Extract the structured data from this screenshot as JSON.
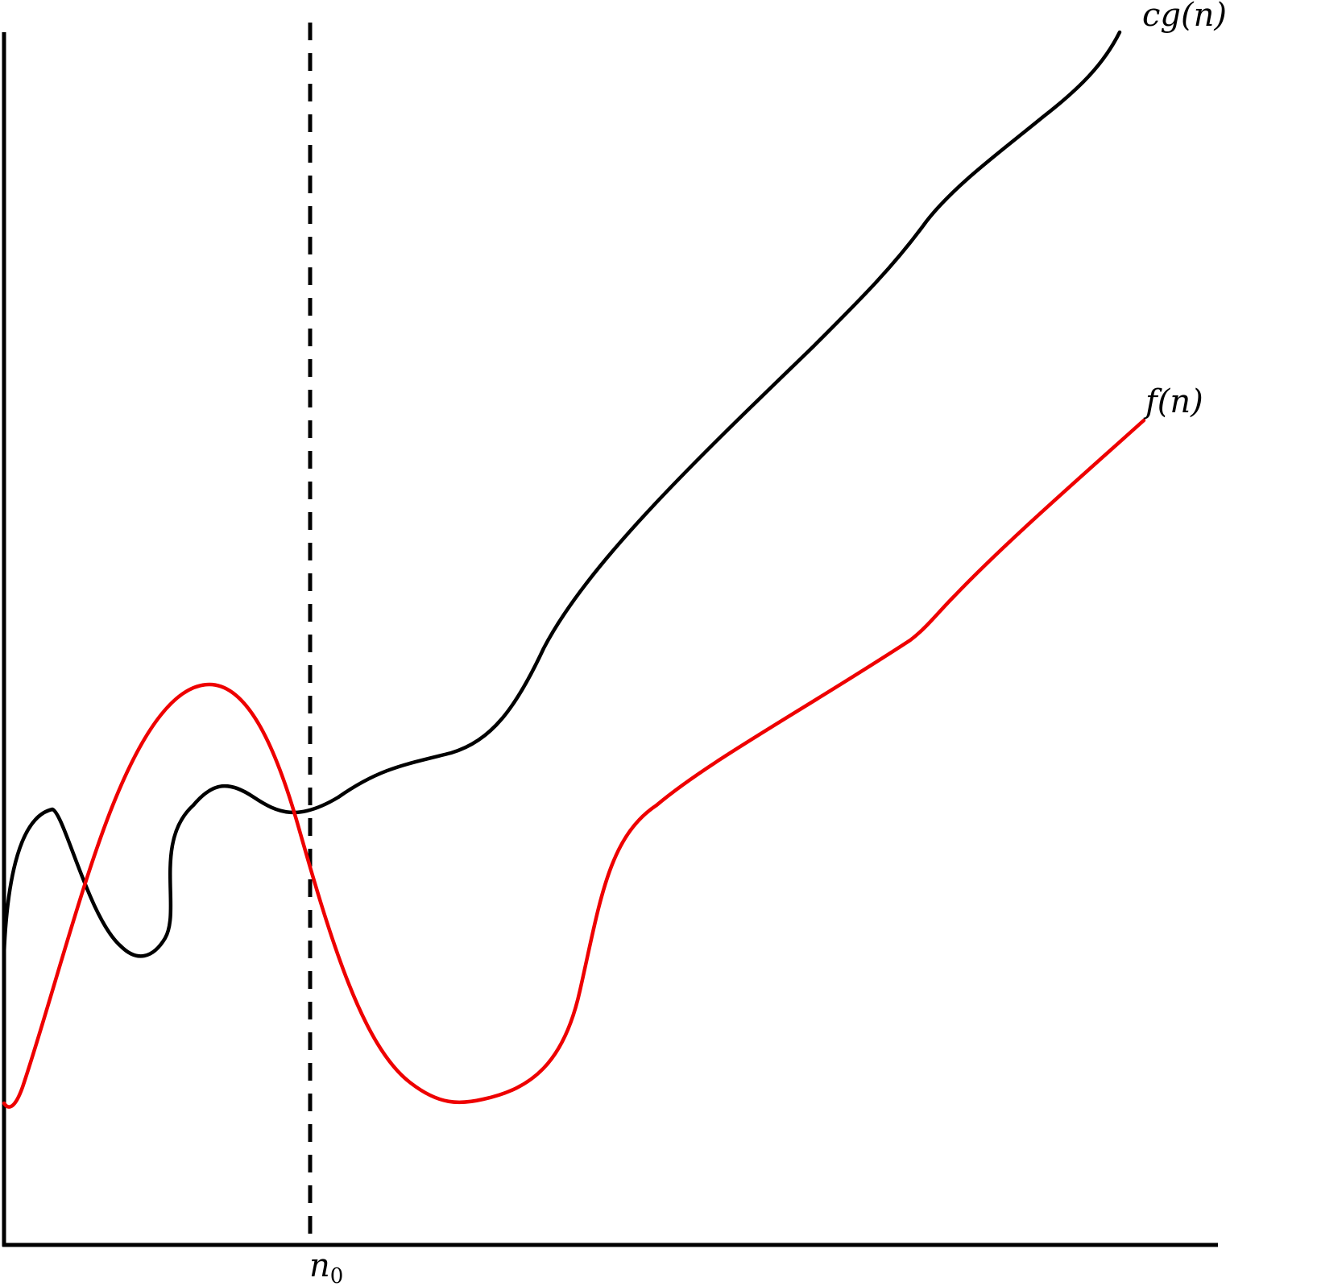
{
  "labels": {
    "upper_curve": "cg(n)",
    "lower_curve": "f(n)",
    "threshold_main": "n",
    "threshold_sub": "0"
  },
  "colors": {
    "upper_curve": "#000000",
    "lower_curve": "#ee0000",
    "axes": "#000000",
    "background": "#ffffff"
  }
}
